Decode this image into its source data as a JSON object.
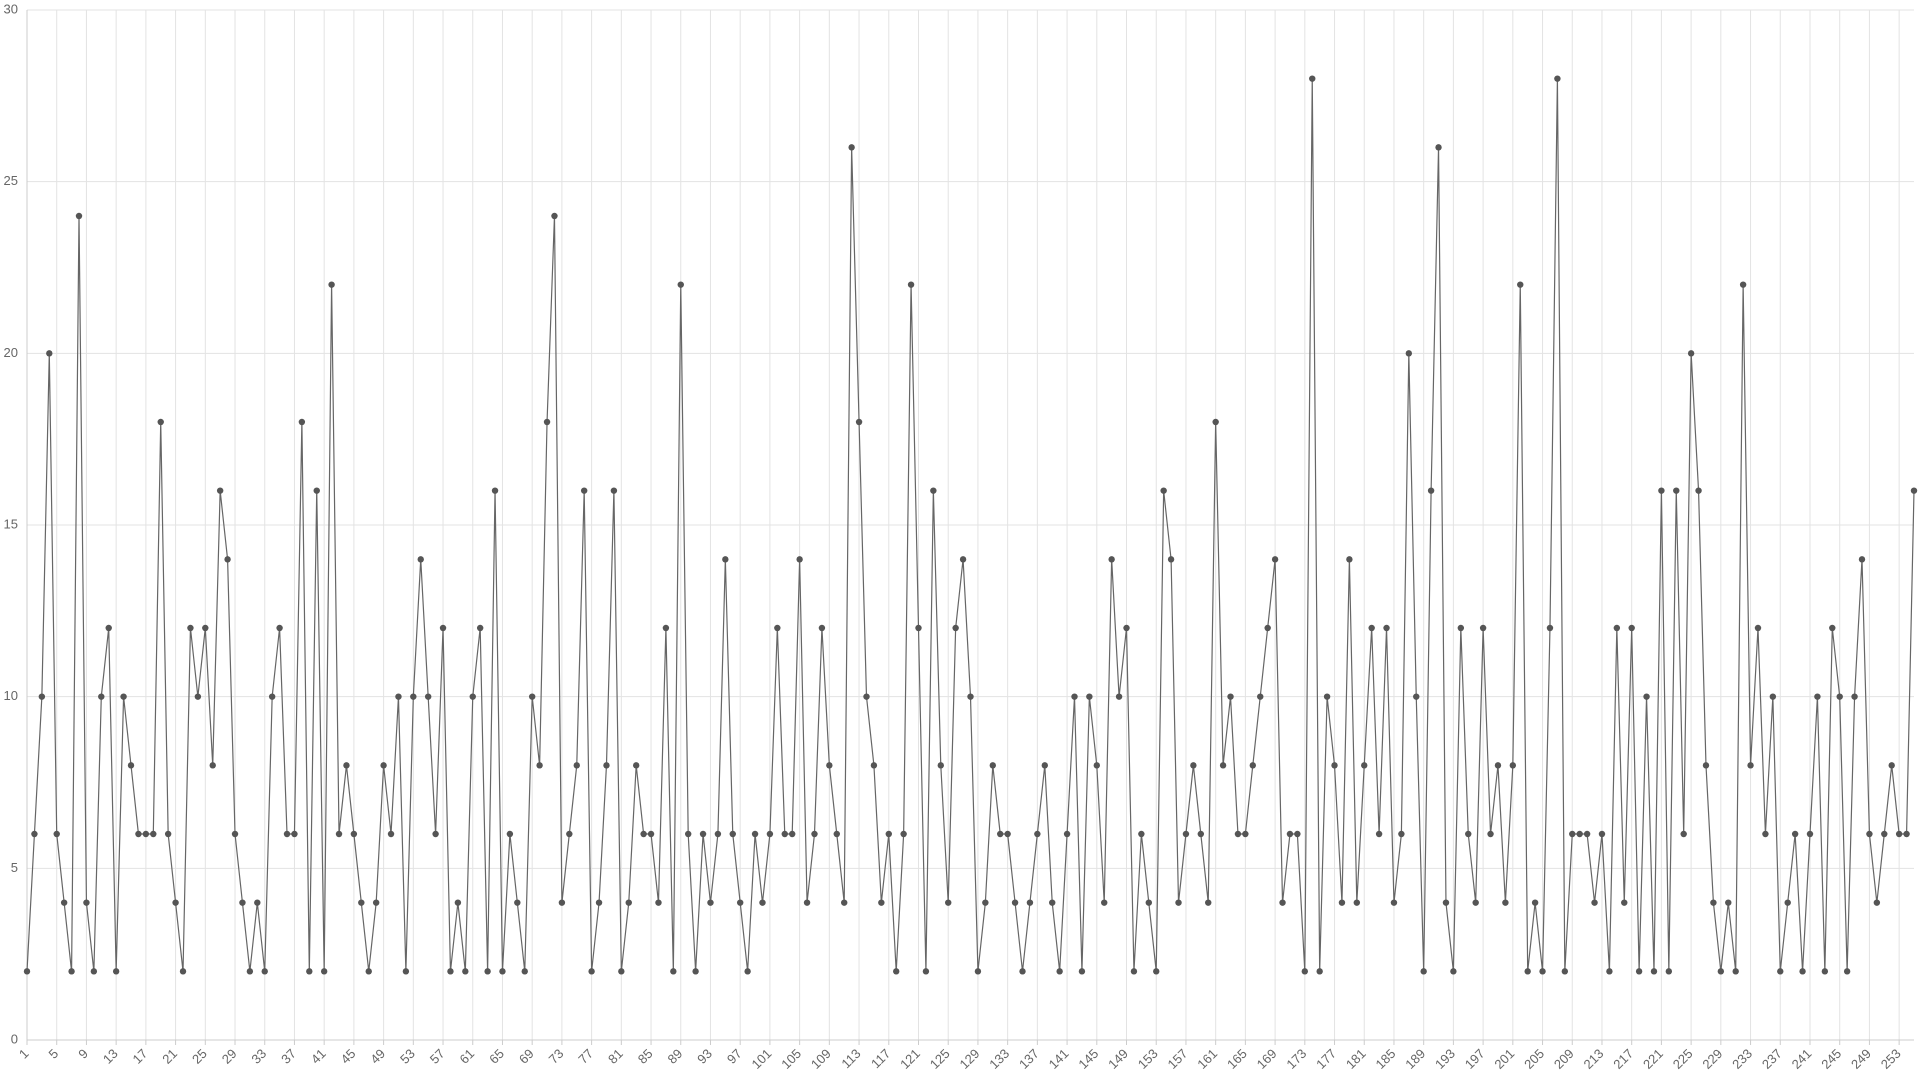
{
  "chart_data": {
    "type": "line",
    "color": "#666666",
    "marker_color": "#555555",
    "grid": true,
    "categories": [
      "1",
      null,
      null,
      null,
      "5",
      null,
      null,
      null,
      "9",
      null,
      null,
      null,
      "13",
      null,
      null,
      null,
      "17",
      null,
      null,
      null,
      "21",
      null,
      null,
      null,
      "25",
      null,
      null,
      null,
      "29",
      null,
      null,
      null,
      "33",
      null,
      null,
      null,
      "37",
      null,
      null,
      null,
      "41",
      null,
      null,
      null,
      "45",
      null,
      null,
      null,
      "49",
      null,
      null,
      null,
      "53",
      null,
      null,
      null,
      "57",
      null,
      null,
      null,
      "61",
      null,
      null,
      null,
      "65",
      null,
      null,
      null,
      "69",
      null,
      null,
      null,
      "73",
      null,
      null,
      null,
      "77",
      null,
      null,
      null,
      "81",
      null,
      null,
      null,
      "85",
      null,
      null,
      null,
      "89",
      null,
      null,
      null,
      "93",
      null,
      null,
      null,
      "97",
      null,
      null,
      null,
      "101",
      null,
      null,
      null,
      "105",
      null,
      null,
      null,
      "109",
      null,
      null,
      null,
      "113",
      null,
      null,
      null,
      "117",
      null,
      null,
      null,
      "121",
      null,
      null,
      null,
      "125",
      null,
      null,
      null,
      "129",
      null,
      null,
      null,
      "133",
      null,
      null,
      null,
      "137",
      null,
      null,
      null,
      "141",
      null,
      null,
      null,
      "145",
      null,
      null,
      null,
      "149",
      null,
      null,
      null,
      "153",
      null,
      null,
      null,
      "157",
      null,
      null,
      null,
      "161",
      null,
      null,
      null,
      "165",
      null,
      null,
      null,
      "169",
      null,
      null,
      null,
      "173",
      null,
      null,
      null,
      "177",
      null,
      null,
      null,
      "181",
      null,
      null,
      null,
      "185",
      null,
      null,
      null,
      "189",
      null,
      null,
      null,
      "193",
      null,
      null,
      null,
      "197",
      null,
      null,
      null,
      "201",
      null,
      null,
      null,
      "205",
      null,
      null,
      null,
      "209",
      null,
      null,
      null,
      "213",
      null,
      null,
      null,
      "217",
      null,
      null,
      null,
      "221",
      null,
      null,
      null,
      "225",
      null,
      null,
      null,
      "229",
      null,
      null,
      null,
      "233",
      null,
      null,
      null,
      "237",
      null,
      null,
      null,
      "241",
      null,
      null,
      null,
      "245",
      null,
      null,
      null,
      "249",
      null,
      null,
      null,
      "253",
      null,
      null
    ],
    "values": [
      2,
      6,
      10,
      20,
      6,
      4,
      2,
      24,
      4,
      2,
      10,
      12,
      2,
      10,
      8,
      6,
      6,
      6,
      18,
      6,
      4,
      2,
      12,
      10,
      12,
      8,
      16,
      14,
      6,
      4,
      2,
      4,
      2,
      10,
      12,
      6,
      6,
      18,
      2,
      16,
      2,
      22,
      6,
      8,
      6,
      4,
      2,
      4,
      8,
      6,
      10,
      2,
      10,
      14,
      10,
      6,
      12,
      2,
      4,
      2,
      10,
      12,
      2,
      16,
      2,
      6,
      4,
      2,
      10,
      8,
      18,
      24,
      4,
      6,
      8,
      16,
      2,
      4,
      8,
      16,
      2,
      4,
      8,
      6,
      6,
      4,
      12,
      2,
      22,
      6,
      2,
      6,
      4,
      6,
      14,
      6,
      4,
      2,
      6,
      4,
      6,
      12,
      6,
      6,
      14,
      4,
      6,
      12,
      8,
      6,
      4,
      26,
      18,
      10,
      8,
      4,
      6,
      2,
      6,
      22,
      12,
      2,
      16,
      8,
      4,
      12,
      14,
      10,
      2,
      4,
      8,
      6,
      6,
      4,
      2,
      4,
      6,
      8,
      4,
      2,
      6,
      10,
      2,
      10,
      8,
      4,
      14,
      10,
      12,
      2,
      6,
      4,
      2,
      16,
      14,
      4,
      6,
      8,
      6,
      4,
      18,
      8,
      10,
      6,
      6,
      8,
      10,
      12,
      14,
      4,
      6,
      6,
      2,
      28,
      2,
      10,
      8,
      4,
      14,
      4,
      8,
      12,
      6,
      12,
      4,
      6,
      20,
      10,
      2,
      16,
      26,
      4,
      2,
      12,
      6,
      4,
      12,
      6,
      8,
      4,
      8,
      22,
      2,
      4,
      2,
      12,
      28,
      2,
      6,
      6,
      6,
      4,
      6,
      2,
      12,
      4,
      12,
      2,
      10,
      2,
      16,
      2,
      16,
      6,
      20,
      16,
      8,
      4,
      2,
      4,
      2,
      22,
      8,
      12,
      6,
      10,
      2,
      4,
      6,
      2,
      6,
      10,
      2,
      12,
      10,
      2,
      10,
      14,
      6,
      4,
      6,
      8,
      6,
      6,
      16
    ],
    "ylim": [
      0,
      30
    ],
    "yticks": [
      0,
      5,
      10,
      15,
      20,
      25,
      30
    ]
  }
}
